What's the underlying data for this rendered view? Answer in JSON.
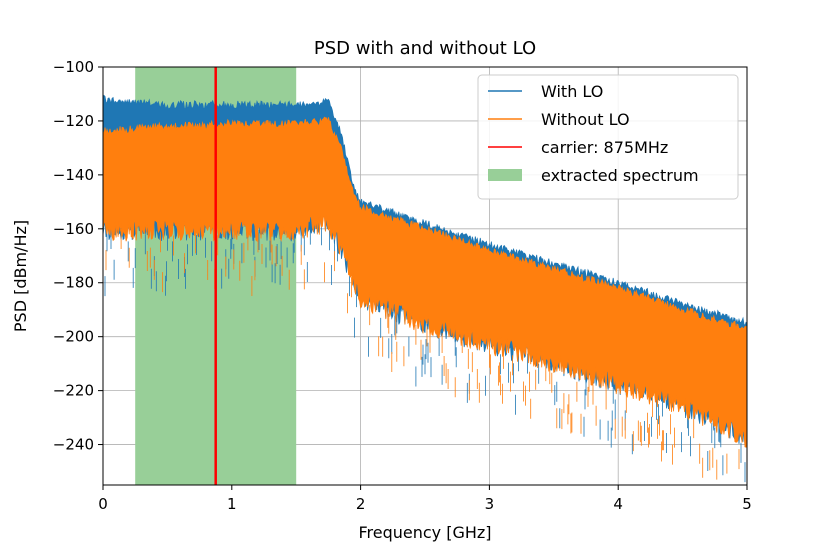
{
  "chart_data": {
    "type": "line",
    "title": "PSD with and without LO",
    "xlabel": "Frequency [GHz]",
    "ylabel": "PSD [dBm/Hz]",
    "xlim": [
      0,
      5
    ],
    "ylim": [
      -255,
      -100
    ],
    "xticks": [
      0,
      1,
      2,
      3,
      4,
      5
    ],
    "xtick_labels": [
      "0",
      "1",
      "2",
      "3",
      "4",
      "5"
    ],
    "yticks": [
      -100,
      -120,
      -140,
      -160,
      -180,
      -200,
      -220,
      -240
    ],
    "ytick_labels": [
      "−100",
      "−120",
      "−140",
      "−160",
      "−180",
      "−200",
      "−220",
      "−240"
    ],
    "grid": true,
    "legend_position": "top-right",
    "series": [
      {
        "name": "With LO",
        "color": "#1f77b4",
        "x": [
          0,
          0.25,
          0.5,
          1.0,
          1.5,
          1.75,
          1.85,
          1.95,
          2.0,
          2.5,
          3.0,
          3.5,
          4.0,
          4.5,
          5.0
        ],
        "upper": [
          -112,
          -113,
          -114,
          -114,
          -114,
          -113,
          -125,
          -145,
          -150,
          -158,
          -166,
          -173,
          -180,
          -188,
          -195
        ],
        "lower": [
          -163,
          -163,
          -163,
          -163,
          -163,
          -160,
          -170,
          -182,
          -188,
          -198,
          -205,
          -212,
          -220,
          -228,
          -240
        ]
      },
      {
        "name": "Without LO",
        "color": "#ff7f0e",
        "x": [
          0,
          0.25,
          0.5,
          1.0,
          1.5,
          1.75,
          1.85,
          1.95,
          2.0,
          2.5,
          3.0,
          3.5,
          4.0,
          4.5,
          5.0
        ],
        "upper": [
          -124,
          -123,
          -122,
          -121,
          -121,
          -120,
          -130,
          -148,
          -152,
          -160,
          -168,
          -175,
          -182,
          -190,
          -197
        ],
        "lower": [
          -163,
          -163,
          -163,
          -163,
          -163,
          -160,
          -170,
          -182,
          -188,
          -198,
          -205,
          -212,
          -220,
          -228,
          -240
        ]
      }
    ],
    "carrier": {
      "name": "carrier: 875MHz",
      "x": 0.875,
      "color": "#ff0000"
    },
    "extracted_spectrum": {
      "name": "extracted spectrum",
      "x_start": 0.25,
      "x_end": 1.5,
      "color": "#98cf98"
    }
  }
}
